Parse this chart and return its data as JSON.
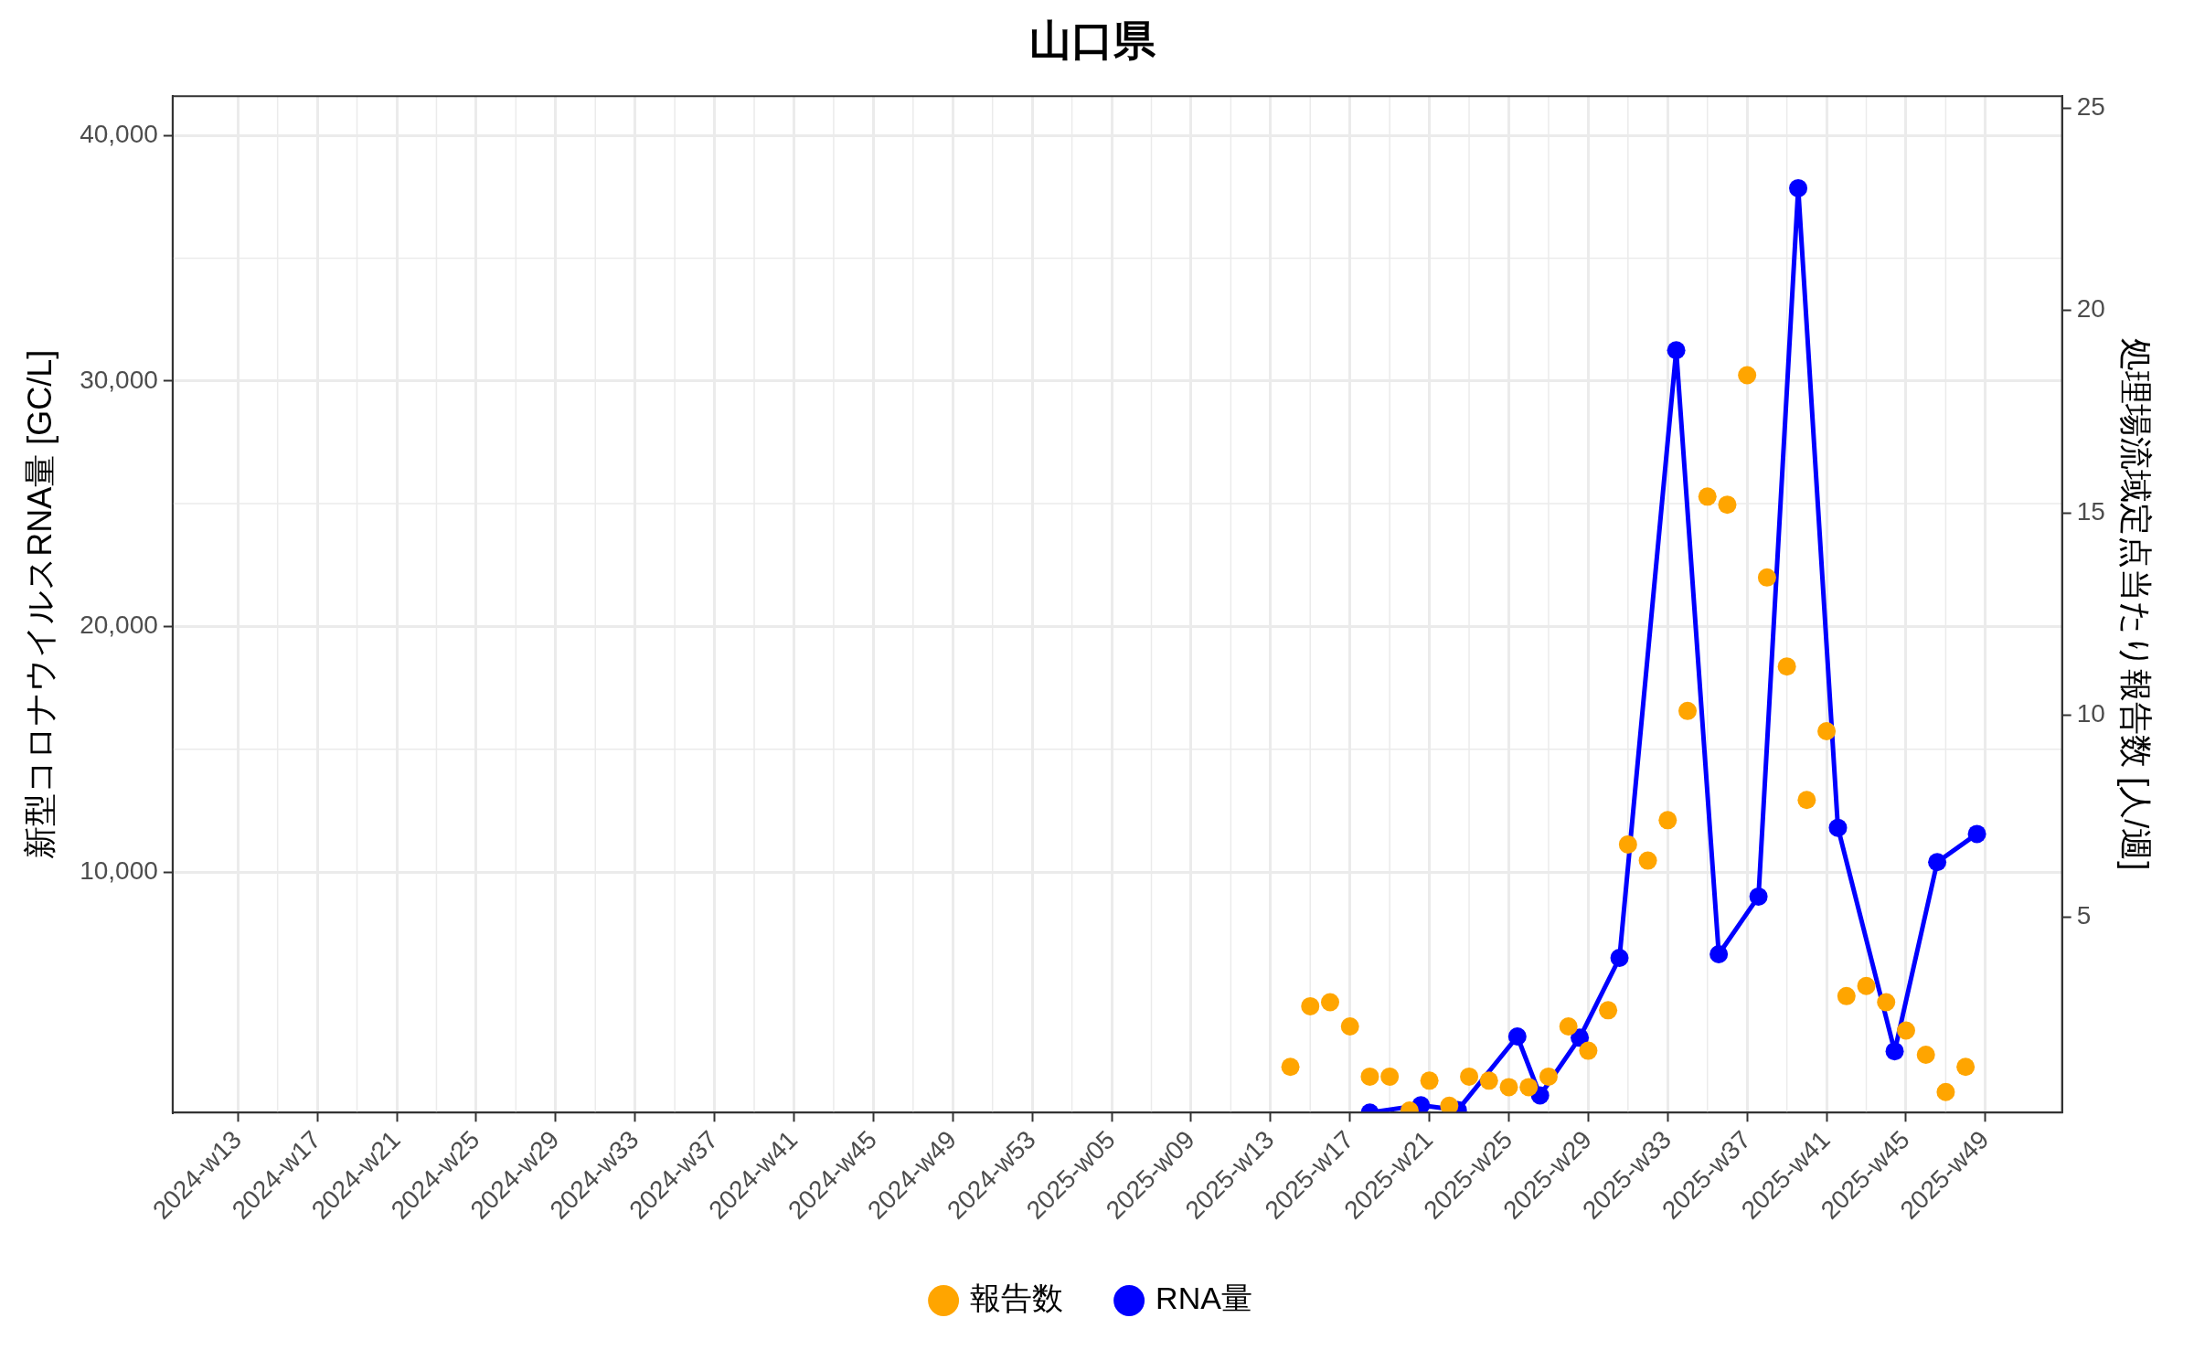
{
  "chart_data": {
    "type": "line",
    "title": "山口県",
    "ylabel": "新型コロナウイルスRNA量 [GC/L]",
    "y2label": "処理場流域定点当たり報告数 [人/週]",
    "xlim": [
      "2024-03-02",
      "2025-12-28"
    ],
    "xticks": [
      {
        "value": "2024-03-25",
        "label": "2024-w13"
      },
      {
        "value": "2024-04-22",
        "label": "2024-w17"
      },
      {
        "value": "2024-05-20",
        "label": "2024-w21"
      },
      {
        "value": "2024-06-17",
        "label": "2024-w25"
      },
      {
        "value": "2024-07-15",
        "label": "2024-w29"
      },
      {
        "value": "2024-08-12",
        "label": "2024-w33"
      },
      {
        "value": "2024-09-09",
        "label": "2024-w37"
      },
      {
        "value": "2024-10-07",
        "label": "2024-w41"
      },
      {
        "value": "2024-11-04",
        "label": "2024-w45"
      },
      {
        "value": "2024-12-02",
        "label": "2024-w49"
      },
      {
        "value": "2024-12-30",
        "label": "2024-w53"
      },
      {
        "value": "2025-01-27",
        "label": "2025-w05"
      },
      {
        "value": "2025-02-24",
        "label": "2025-w09"
      },
      {
        "value": "2025-03-24",
        "label": "2025-w13"
      },
      {
        "value": "2025-04-21",
        "label": "2025-w17"
      },
      {
        "value": "2025-05-19",
        "label": "2025-w21"
      },
      {
        "value": "2025-06-16",
        "label": "2025-w25"
      },
      {
        "value": "2025-07-14",
        "label": "2025-w29"
      },
      {
        "value": "2025-08-11",
        "label": "2025-w33"
      },
      {
        "value": "2025-09-08",
        "label": "2025-w37"
      },
      {
        "value": "2025-10-06",
        "label": "2025-w41"
      },
      {
        "value": "2025-11-03",
        "label": "2025-w45"
      },
      {
        "value": "2025-12-01",
        "label": "2025-w49"
      }
    ],
    "ylim": [
      200,
      41600
    ],
    "yticks": [
      {
        "value": 10000,
        "label": "10,000"
      },
      {
        "value": 20000,
        "label": "20,000"
      },
      {
        "value": 30000,
        "label": "30,000"
      },
      {
        "value": 40000,
        "label": "40,000"
      }
    ],
    "y2lim": [
      0.17,
      25.3
    ],
    "y2ticks": [
      5,
      10,
      15,
      20,
      25
    ],
    "grid": true,
    "legend": "bottom",
    "marker": "circle",
    "series": [
      {
        "name": "RNA量",
        "color": "#0000ff",
        "x": [
          "2025-04-28",
          "2025-05-16",
          "2025-05-29",
          "2025-06-19",
          "2025-06-27",
          "2025-07-11",
          "2025-07-25",
          "2025-08-14",
          "2025-08-29",
          "2025-09-12",
          "2025-09-26",
          "2025-10-10",
          "2025-10-30",
          "2025-11-14",
          "2025-11-28"
        ],
        "values": [
          200,
          500,
          300,
          3300,
          900,
          3250,
          6500,
          31250,
          6650,
          9000,
          37850,
          11800,
          2700,
          10400,
          11550
        ]
      },
      {
        "name": "報告数",
        "type": "scatter",
        "axis": "y2",
        "color": "#ffa500",
        "x": [
          "2025-03-31",
          "2025-04-07",
          "2025-04-14",
          "2025-04-21",
          "2025-04-28",
          "2025-05-05",
          "2025-05-12",
          "2025-05-19",
          "2025-05-26",
          "2025-06-02",
          "2025-06-09",
          "2025-06-16",
          "2025-06-23",
          "2025-06-30",
          "2025-07-07",
          "2025-07-14",
          "2025-07-21",
          "2025-07-28",
          "2025-08-04",
          "2025-08-11",
          "2025-08-18",
          "2025-08-25",
          "2025-09-01",
          "2025-09-08",
          "2025-09-15",
          "2025-09-22",
          "2025-09-29",
          "2025-10-06",
          "2025-10-13",
          "2025-10-20",
          "2025-10-27",
          "2025-11-03",
          "2025-11-10",
          "2025-11-17",
          "2025-11-24"
        ],
        "values": [
          1.3,
          2.8,
          2.9,
          2.3,
          1.06,
          1.06,
          0.22,
          0.96,
          0.34,
          1.06,
          0.96,
          0.8,
          0.8,
          1.06,
          2.3,
          1.7,
          2.7,
          6.8,
          6.4,
          7.4,
          10.1,
          15.4,
          15.2,
          18.4,
          13.4,
          11.2,
          7.9,
          9.6,
          3.05,
          3.3,
          2.9,
          2.2,
          1.6,
          0.68,
          1.3
        ]
      }
    ]
  }
}
